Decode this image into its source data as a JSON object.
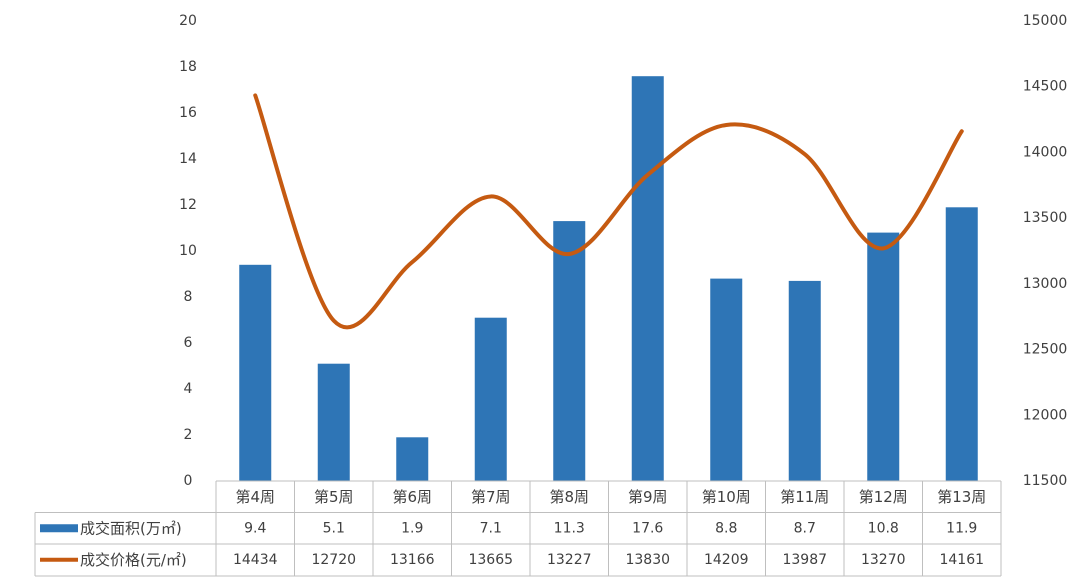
{
  "chart_data": {
    "type": "bar",
    "categories": [
      "第4周",
      "第5周",
      "第6周",
      "第7周",
      "第8周",
      "第9周",
      "第10周",
      "第11周",
      "第12周",
      "第13周"
    ],
    "series": [
      {
        "name": "成交面积(万㎡)",
        "type": "bar",
        "axis": "left",
        "color": "#2E75B6",
        "values": [
          9.4,
          5.1,
          1.9,
          7.1,
          11.3,
          17.6,
          8.8,
          8.7,
          10.8,
          11.9
        ]
      },
      {
        "name": "成交价格(元/㎡)",
        "type": "line",
        "axis": "right",
        "color": "#C55A11",
        "smooth": true,
        "values": [
          14434,
          12720,
          13166,
          13665,
          13227,
          13830,
          14209,
          13987,
          13270,
          14161
        ]
      }
    ],
    "y_left": {
      "range": [
        0,
        20
      ],
      "ticks": [
        0,
        2,
        4,
        6,
        8,
        10,
        12,
        14,
        16,
        18,
        20
      ]
    },
    "y_right": {
      "range": [
        11500,
        15000
      ],
      "ticks": [
        11500,
        12000,
        12500,
        13000,
        13500,
        14000,
        14500,
        15000
      ]
    },
    "data_table": true,
    "grid": false
  }
}
